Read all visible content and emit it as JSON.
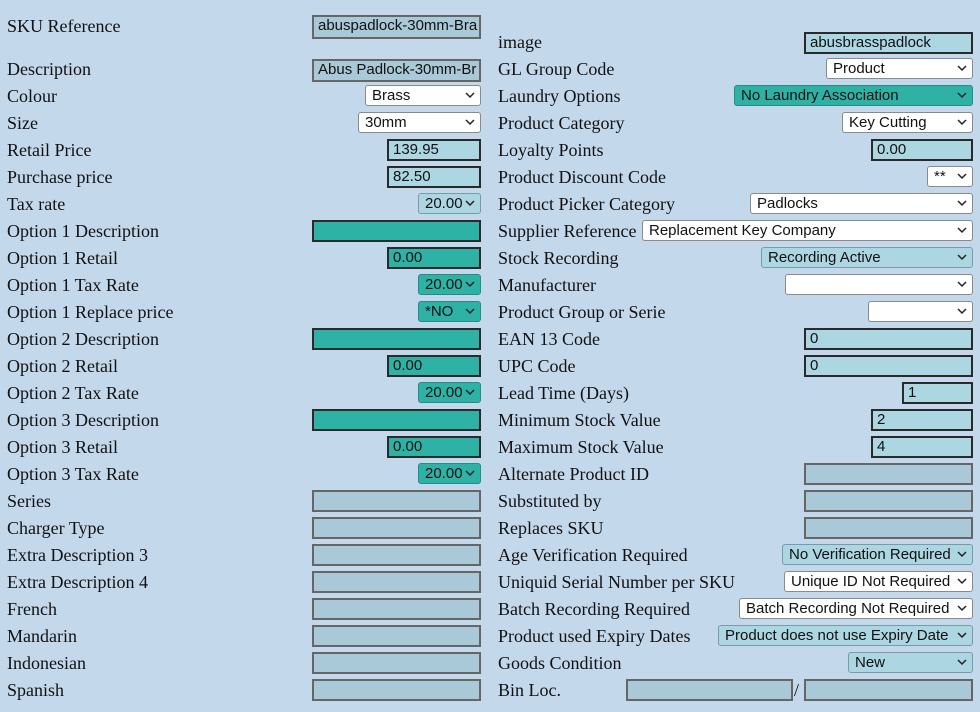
{
  "left": {
    "sku_reference": {
      "label": "SKU Reference",
      "value": "abuspadlock-30mm-Bra"
    },
    "description": {
      "label": "Description",
      "value": "Abus Padlock-30mm-Br"
    },
    "colour": {
      "label": "Colour",
      "value": "Brass"
    },
    "size": {
      "label": "Size",
      "value": "30mm"
    },
    "retail_price": {
      "label": "Retail Price",
      "value": "139.95"
    },
    "purchase_price": {
      "label": "Purchase price",
      "value": "82.50"
    },
    "tax_rate": {
      "label": "Tax rate",
      "value": "20.00"
    },
    "opt1_desc": {
      "label": "Option 1 Description",
      "value": ""
    },
    "opt1_retail": {
      "label": "Option 1 Retail",
      "value": "0.00"
    },
    "opt1_tax": {
      "label": "Option 1 Tax Rate",
      "value": "20.00"
    },
    "opt1_replace": {
      "label": "Option 1 Replace price",
      "value": "*NO"
    },
    "opt2_desc": {
      "label": "Option 2 Description",
      "value": ""
    },
    "opt2_retail": {
      "label": "Option 2 Retail",
      "value": "0.00"
    },
    "opt2_tax": {
      "label": "Option 2 Tax Rate",
      "value": "20.00"
    },
    "opt3_desc": {
      "label": "Option 3 Description",
      "value": ""
    },
    "opt3_retail": {
      "label": "Option 3 Retail",
      "value": "0.00"
    },
    "opt3_tax": {
      "label": "Option 3 Tax Rate",
      "value": "20.00"
    },
    "series": {
      "label": "Series",
      "value": ""
    },
    "charger_type": {
      "label": "Charger Type",
      "value": ""
    },
    "extra_desc3": {
      "label": "Extra Description 3",
      "value": ""
    },
    "extra_desc4": {
      "label": "Extra Description 4",
      "value": ""
    },
    "french": {
      "label": "French",
      "value": ""
    },
    "mandarin": {
      "label": "Mandarin",
      "value": ""
    },
    "indonesian": {
      "label": "Indonesian",
      "value": ""
    },
    "spanish": {
      "label": "Spanish",
      "value": ""
    }
  },
  "right": {
    "image": {
      "label": "image",
      "value": "abusbrasspadlock"
    },
    "gl_group": {
      "label": "GL Group Code",
      "value": "Product"
    },
    "laundry": {
      "label": "Laundry Options",
      "value": "No Laundry Association"
    },
    "product_category": {
      "label": "Product Category",
      "value": "Key Cutting"
    },
    "loyalty": {
      "label": "Loyalty Points",
      "value": "0.00"
    },
    "discount_code": {
      "label": "Product Discount Code",
      "value": "**"
    },
    "picker_category": {
      "label": "Product Picker Category",
      "value": "Padlocks"
    },
    "supplier_ref": {
      "label": "Supplier Reference",
      "value": "Replacement Key Company"
    },
    "stock_recording": {
      "label": "Stock Recording",
      "value": "Recording Active"
    },
    "manufacturer": {
      "label": "Manufacturer",
      "value": ""
    },
    "product_group": {
      "label": "Product Group or Serie",
      "value": ""
    },
    "ean13": {
      "label": "EAN 13 Code",
      "value": "0"
    },
    "upc": {
      "label": "UPC Code",
      "value": "0"
    },
    "lead_time": {
      "label": "Lead Time (Days)",
      "value": "1"
    },
    "min_stock": {
      "label": "Minimum Stock Value",
      "value": "2"
    },
    "max_stock": {
      "label": "Maximum Stock Value",
      "value": "4"
    },
    "alt_product": {
      "label": "Alternate Product ID",
      "value": ""
    },
    "substituted_by": {
      "label": "Substituted by",
      "value": ""
    },
    "replaces_sku": {
      "label": "Replaces SKU",
      "value": ""
    },
    "age_verification": {
      "label": "Age Verification Required",
      "value": "No Verification Required"
    },
    "serial_number": {
      "label": "Uniquid Serial Number per SKU",
      "value": "Unique ID Not Required"
    },
    "batch_recording": {
      "label": "Batch Recording Required",
      "value": "Batch Recording Not Required"
    },
    "expiry_dates": {
      "label": "Product used Expiry Dates",
      "value": "Product does not use Expiry Date"
    },
    "goods_condition": {
      "label": "Goods Condition",
      "value": "New"
    },
    "bin_loc": {
      "label": "Bin Loc.",
      "value1": "",
      "separator": "/",
      "value2": ""
    }
  },
  "colors": {
    "background": "#c4d8ec",
    "field": "#abd6e2",
    "teal": "#2fb2a6"
  },
  "icons": {
    "dropdown": "chevron-down-icon"
  }
}
